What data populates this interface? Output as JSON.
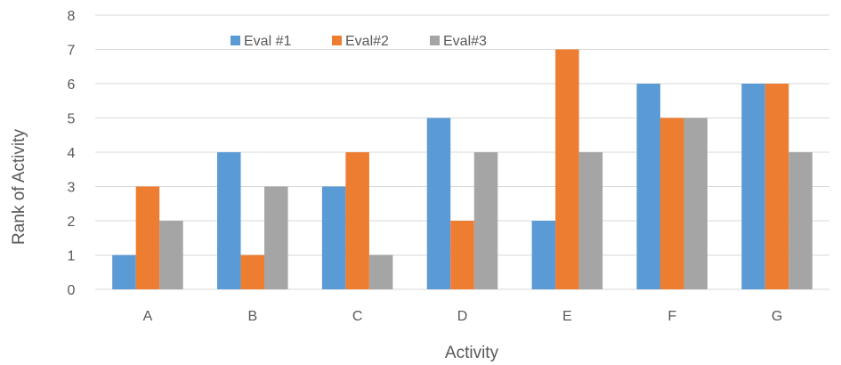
{
  "chart_data": {
    "type": "bar",
    "title": "",
    "xlabel": "Activity",
    "ylabel": "Rank of Activity",
    "categories": [
      "A",
      "B",
      "C",
      "D",
      "E",
      "F",
      "G"
    ],
    "ylim": [
      0,
      8
    ],
    "yticks": [
      "0",
      "1",
      "2",
      "3",
      "4",
      "5",
      "6",
      "7",
      "8"
    ],
    "grid": true,
    "legend_position": "top",
    "series": [
      {
        "name": "Eval #1",
        "color": "#5b9bd5",
        "values": [
          1,
          4,
          3,
          5,
          2,
          6,
          6
        ]
      },
      {
        "name": "Eval#2",
        "color": "#ed7d31",
        "values": [
          3,
          1,
          4,
          2,
          7,
          5,
          6
        ]
      },
      {
        "name": "Eval#3",
        "color": "#a5a5a5",
        "values": [
          2,
          3,
          1,
          4,
          4,
          5,
          4
        ]
      }
    ]
  }
}
